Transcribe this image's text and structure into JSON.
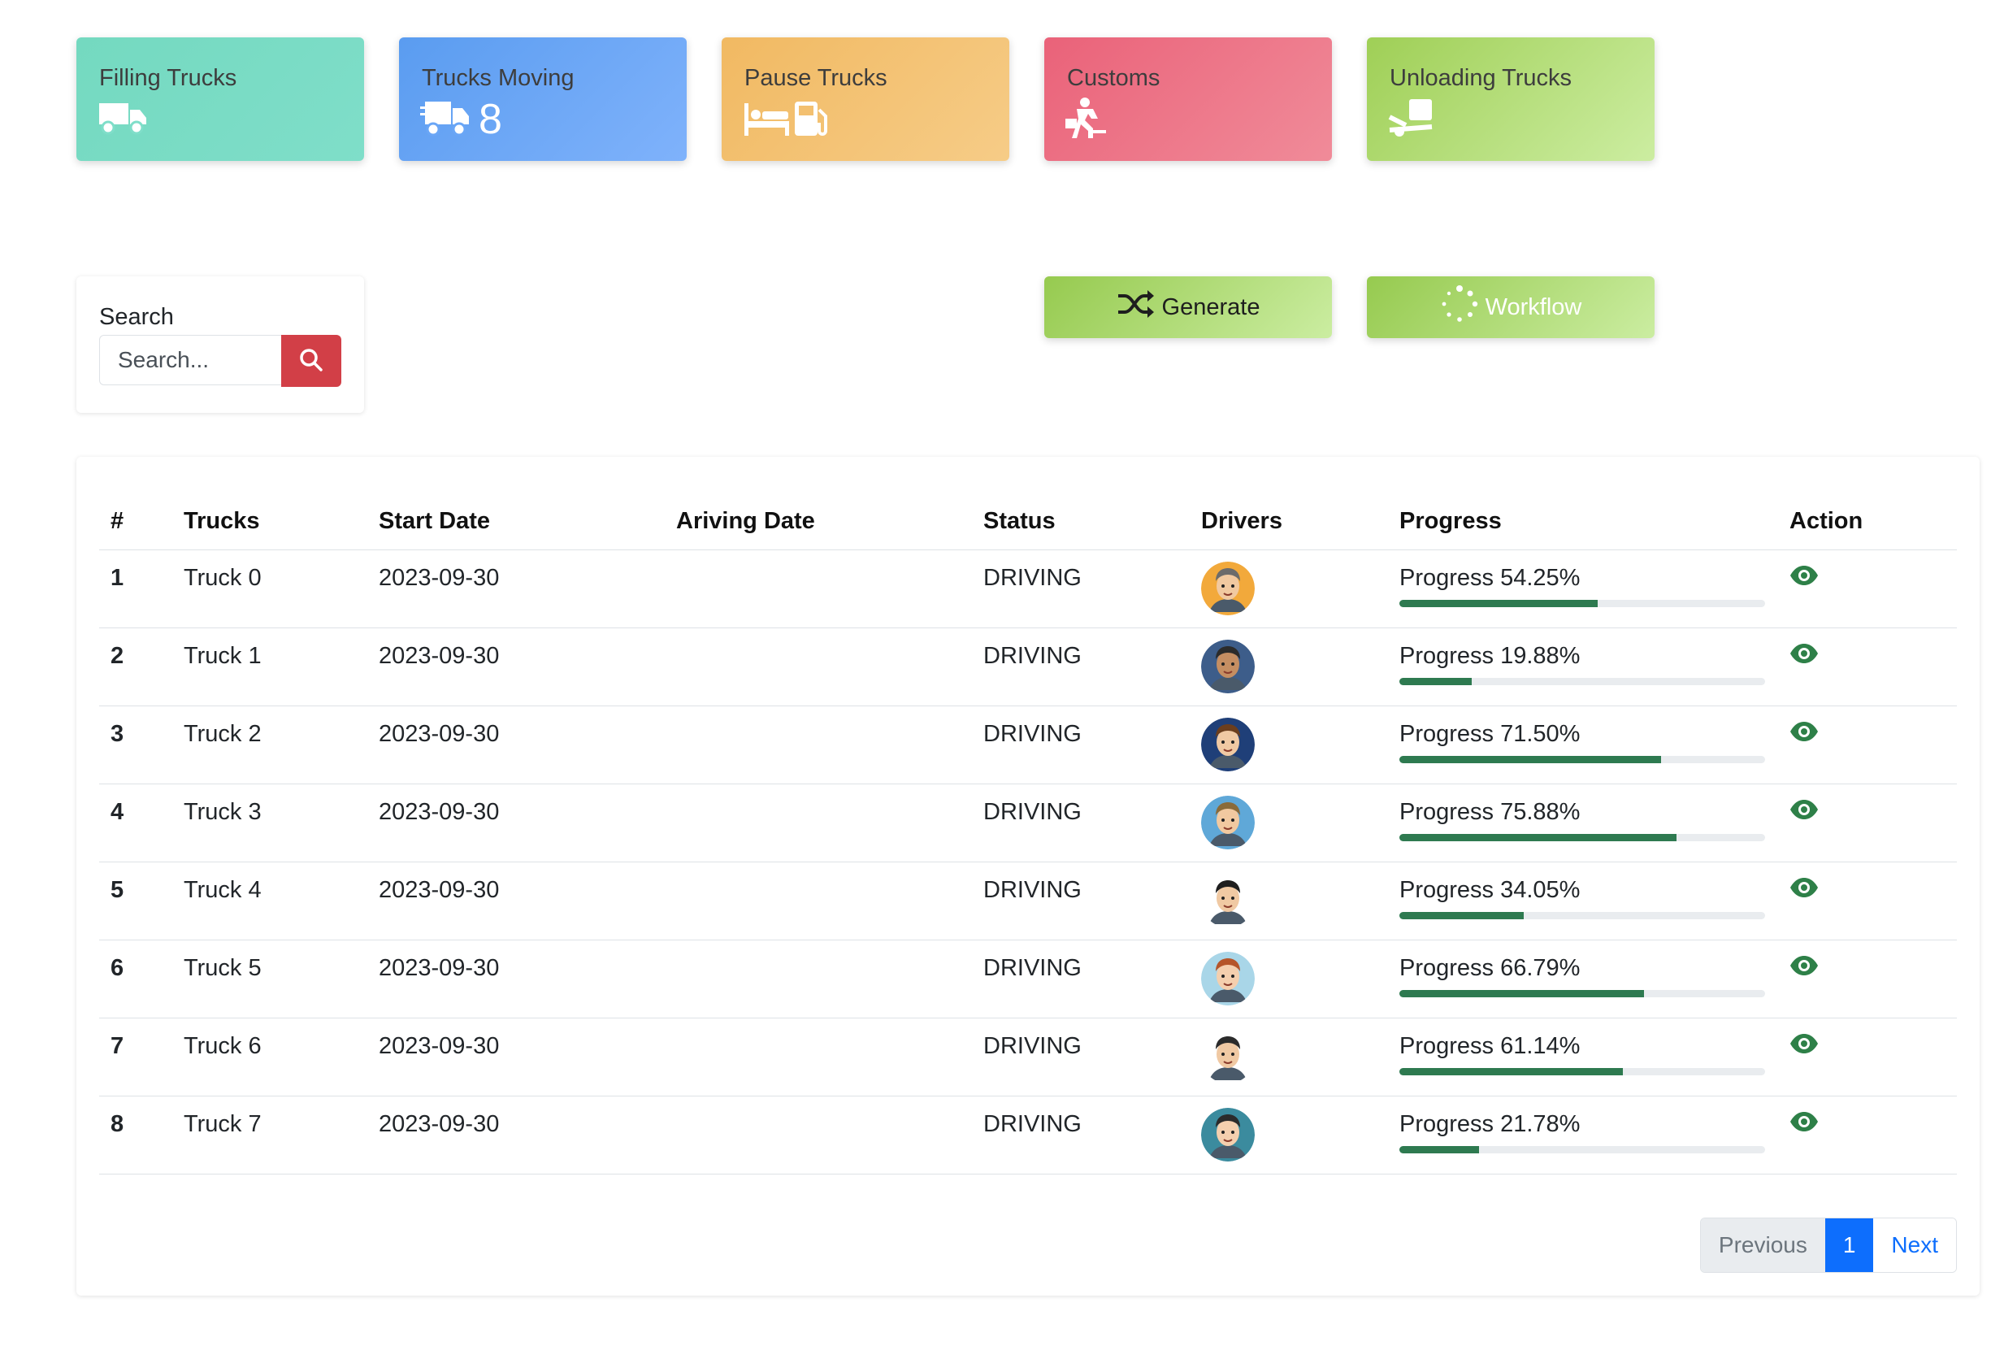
{
  "stats": {
    "filling": {
      "title": "Filling Trucks",
      "icon": "truck-icon",
      "count": ""
    },
    "moving": {
      "title": "Trucks Moving",
      "icon": "truck-fast-icon",
      "count": "8"
    },
    "pause": {
      "title": "Pause Trucks",
      "icon": "bed-gas-pump-icon",
      "count": ""
    },
    "customs": {
      "title": "Customs",
      "icon": "person-carry-icon",
      "count": ""
    },
    "unloading": {
      "title": "Unloading Trucks",
      "icon": "dolly-icon",
      "count": ""
    }
  },
  "search": {
    "label": "Search",
    "placeholder": "Search...",
    "value": "",
    "button_icon": "magnifying-glass-icon"
  },
  "actions": {
    "generate": {
      "label": "Generate",
      "icon": "shuffle-icon"
    },
    "workflow": {
      "label": "Workflow",
      "icon": "spinner-icon"
    }
  },
  "table": {
    "headers": [
      "#",
      "Trucks",
      "Start Date",
      "Ariving Date",
      "Status",
      "Drivers",
      "Progress",
      "Action"
    ],
    "rows": [
      {
        "num": "1",
        "truck": "Truck 0",
        "start": "2023-09-30",
        "arrive": "",
        "status": "DRIVING",
        "driver": "driver-avatar-0",
        "progress_text": "Progress 54.25%",
        "progress": 54.25,
        "action": "eye-icon"
      },
      {
        "num": "2",
        "truck": "Truck 1",
        "start": "2023-09-30",
        "arrive": "",
        "status": "DRIVING",
        "driver": "driver-avatar-1",
        "progress_text": "Progress 19.88%",
        "progress": 19.88,
        "action": "eye-icon"
      },
      {
        "num": "3",
        "truck": "Truck 2",
        "start": "2023-09-30",
        "arrive": "",
        "status": "DRIVING",
        "driver": "driver-avatar-2",
        "progress_text": "Progress 71.50%",
        "progress": 71.5,
        "action": "eye-icon"
      },
      {
        "num": "4",
        "truck": "Truck 3",
        "start": "2023-09-30",
        "arrive": "",
        "status": "DRIVING",
        "driver": "driver-avatar-3",
        "progress_text": "Progress 75.88%",
        "progress": 75.88,
        "action": "eye-icon"
      },
      {
        "num": "5",
        "truck": "Truck 4",
        "start": "2023-09-30",
        "arrive": "",
        "status": "DRIVING",
        "driver": "driver-avatar-4",
        "progress_text": "Progress 34.05%",
        "progress": 34.05,
        "action": "eye-icon"
      },
      {
        "num": "6",
        "truck": "Truck 5",
        "start": "2023-09-30",
        "arrive": "",
        "status": "DRIVING",
        "driver": "driver-avatar-5",
        "progress_text": "Progress 66.79%",
        "progress": 66.79,
        "action": "eye-icon"
      },
      {
        "num": "7",
        "truck": "Truck 6",
        "start": "2023-09-30",
        "arrive": "",
        "status": "DRIVING",
        "driver": "driver-avatar-6",
        "progress_text": "Progress 61.14%",
        "progress": 61.14,
        "action": "eye-icon"
      },
      {
        "num": "8",
        "truck": "Truck 7",
        "start": "2023-09-30",
        "arrive": "",
        "status": "DRIVING",
        "driver": "driver-avatar-7",
        "progress_text": "Progress 21.78%",
        "progress": 21.78,
        "action": "eye-icon"
      }
    ]
  },
  "pagination": {
    "previous": "Previous",
    "current": "1",
    "next": "Next"
  },
  "colors": {
    "status_driving": "#2e8048",
    "progress_fill": "#2e7a50",
    "search_button": "#d23f47",
    "page_active": "#0d6efd",
    "action_green": "#96ca4f",
    "eye_icon": "#2e8048"
  }
}
